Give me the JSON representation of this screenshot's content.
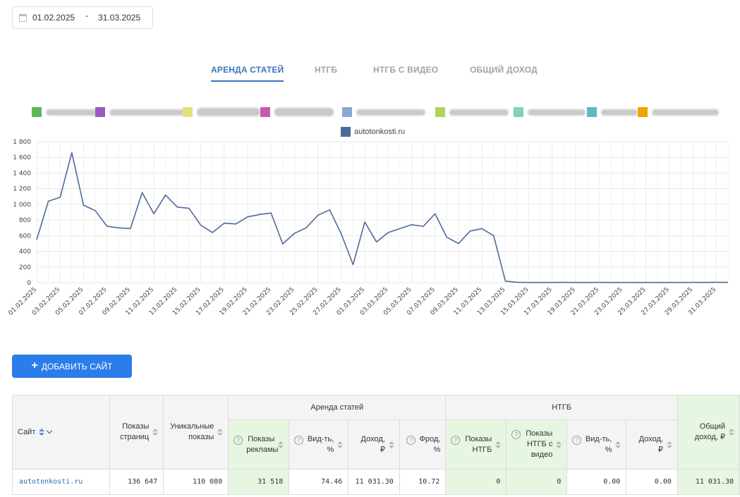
{
  "date_range": {
    "from": "01.02.2025",
    "separator": "-",
    "to": "31.03.2025"
  },
  "tabs": [
    "АРЕНДА СТАТЕЙ",
    "НТГБ",
    "НТГБ С ВИДЕО",
    "ОБЩИЙ ДОХОД"
  ],
  "legend_colors": [
    "#5cb85c",
    "#9b59c8",
    "#e2e07a",
    "#c45cae",
    "#8aa8d0",
    "#b3d35a",
    "#7fd3b4",
    "#5fb8c9",
    "#f0a400"
  ],
  "chart_data": {
    "type": "line",
    "series": [
      {
        "name": "autotonkosti.ru",
        "color": "#4e6a9c",
        "values": [
          550,
          1040,
          1090,
          1660,
          990,
          920,
          720,
          700,
          690,
          1150,
          880,
          1120,
          965,
          950,
          735,
          640,
          760,
          750,
          840,
          870,
          890,
          495,
          630,
          700,
          860,
          930,
          620,
          230,
          775,
          520,
          640,
          690,
          740,
          720,
          880,
          580,
          500,
          660,
          690,
          600,
          20,
          5,
          3,
          3,
          3,
          4,
          3,
          3,
          4,
          3,
          3,
          3,
          3,
          3,
          3,
          3,
          4,
          3,
          5,
          4
        ]
      }
    ],
    "x_tick_labels": [
      "01.02.2025",
      "03.02.2025",
      "05.02.2025",
      "07.02.2025",
      "09.02.2025",
      "11.02.2025",
      "13.02.2025",
      "15.02.2025",
      "17.02.2025",
      "19.02.2025",
      "21.02.2025",
      "23.02.2025",
      "25.02.2025",
      "27.02.2025",
      "01.03.2025",
      "03.03.2025",
      "05.03.2025",
      "07.03.2025",
      "09.03.2025",
      "11.03.2025",
      "13.03.2025",
      "15.03.2025",
      "17.03.2025",
      "19.03.2025",
      "21.03.2025",
      "23.03.2025",
      "25.03.2025",
      "27.03.2025",
      "29.03.2025",
      "31.03.2025"
    ],
    "y_ticks": [
      0,
      200,
      400,
      600,
      800,
      1000,
      1200,
      1400,
      1600,
      1800
    ],
    "y_tick_labels": [
      "0",
      "200",
      "400",
      "600",
      "800",
      "1 000",
      "1 200",
      "1 400",
      "1 600",
      "1 800"
    ],
    "ylim": [
      0,
      1800
    ],
    "grid": true,
    "legend_position": "top"
  },
  "add_site_label": "ДОБАВИТЬ САЙТ",
  "table": {
    "headers": {
      "site": "Сайт",
      "page_views": "Показы страниц",
      "unique_views": "Уникальные показы",
      "group_rent": "Аренда статей",
      "group_ntgb": "НТГБ",
      "ad_views": "Показы рекламы",
      "visibility": "Вид-ть, %",
      "income": "Доход, ₽",
      "fraud": "Фрод, %",
      "ntgb_views": "Показы НТГБ",
      "ntgb_video_views": "Показы НТГБ с видео",
      "ntgb_visibility": "Вид-ть, %",
      "ntgb_income": "Доход, ₽",
      "total_income": "Общий доход, ₽"
    },
    "rows": [
      {
        "site": "autotonkosti.ru",
        "page_views": "136 647",
        "unique_views": "110 080",
        "ad_views": "31 518",
        "visibility": "74.46",
        "income": "11 031.30",
        "fraud": "10.72",
        "ntgb_views": "0",
        "ntgb_video_views": "0",
        "ntgb_visibility": "0.00",
        "ntgb_income": "0.00",
        "total_income": "11 031.30"
      }
    ]
  }
}
